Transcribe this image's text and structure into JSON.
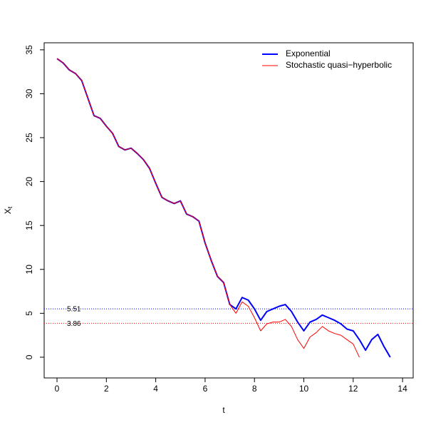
{
  "chart_data": {
    "type": "line",
    "xlabel": "t",
    "ylabel": "X",
    "ylabel_subscript": "t",
    "x": [
      0,
      0.25,
      0.5,
      0.75,
      1,
      1.25,
      1.5,
      1.75,
      2,
      2.25,
      2.5,
      2.75,
      3,
      3.25,
      3.5,
      3.75,
      4,
      4.25,
      4.5,
      4.75,
      5,
      5.25,
      5.5,
      5.75,
      6,
      6.25,
      6.5,
      6.75,
      7,
      7.25,
      7.5,
      7.75,
      8,
      8.25,
      8.5,
      8.75,
      9,
      9.25,
      9.5,
      9.75,
      10,
      10.25,
      10.5,
      10.75,
      11,
      11.25,
      11.5,
      11.75,
      12,
      12.25,
      12.5,
      12.75,
      13,
      13.25,
      13.5
    ],
    "series": [
      {
        "name": "Exponential",
        "color": "#0000ff",
        "width": 2,
        "values": [
          34,
          33.5,
          32.7,
          32.3,
          31.5,
          29.5,
          27.5,
          27.2,
          26.3,
          25.5,
          24,
          23.6,
          23.8,
          23.2,
          22.5,
          21.5,
          19.8,
          18.2,
          17.8,
          17.5,
          17.8,
          16.3,
          16,
          15.5,
          13,
          11,
          9.2,
          8.5,
          6,
          5.5,
          6.8,
          6.5,
          5.5,
          4.2,
          5.2,
          5.5,
          5.8,
          6,
          5.2,
          4,
          3,
          4,
          4.3,
          4.8,
          4.5,
          4.2,
          3.8,
          3.2,
          3,
          2,
          0.8,
          2,
          2.6,
          1.2,
          0
        ]
      },
      {
        "name": "Stochastic quasi−hyperbolic",
        "color": "#ff0000",
        "width": 1,
        "values": [
          34,
          33.5,
          32.7,
          32.3,
          31.5,
          29.5,
          27.5,
          27.2,
          26.3,
          25.5,
          24,
          23.6,
          23.8,
          23.2,
          22.5,
          21.5,
          19.8,
          18.2,
          17.8,
          17.5,
          17.8,
          16.3,
          16,
          15.5,
          13,
          11,
          9.2,
          8.5,
          6,
          5,
          6.3,
          5.8,
          4.5,
          3,
          3.8,
          4,
          4,
          4.3,
          3.5,
          2,
          1,
          2.3,
          2.8,
          3.5,
          3,
          2.7,
          2.5,
          2,
          1.5,
          0,
          null,
          null,
          null,
          null,
          null
        ]
      }
    ],
    "hlines": [
      {
        "value": 5.51,
        "color": "#0000ff"
      },
      {
        "value": 3.86,
        "color": "#ff0000"
      }
    ],
    "xlim": [
      -0.52,
      14.43
    ],
    "xticks": [
      0,
      2,
      4,
      6,
      8,
      10,
      12,
      14
    ],
    "ylim": [
      -2.36,
      35.8
    ],
    "yticks": [
      0,
      5,
      10,
      15,
      20,
      25,
      30,
      35
    ],
    "legend": "topright"
  }
}
